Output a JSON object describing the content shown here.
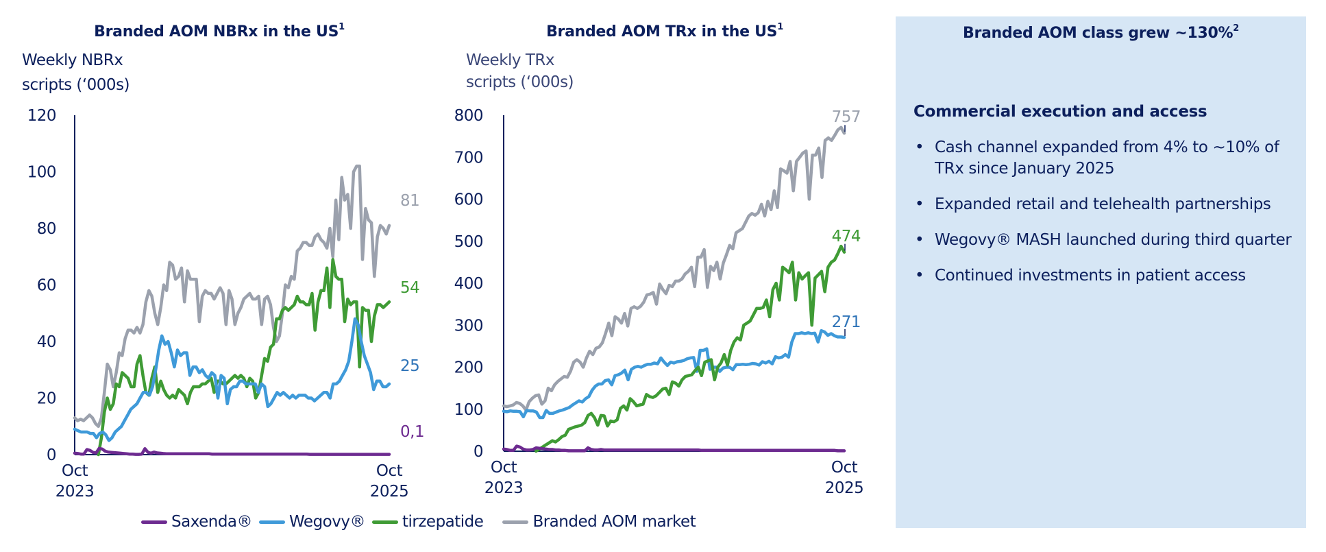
{
  "colors": {
    "saxenda": "#6d2b90",
    "wegovy": "#3f9ad9",
    "tirzepatide": "#3f9b35",
    "market": "#9ba1ad",
    "axis": "#0c1f5c",
    "panel_bg": "#d6e6f5",
    "text": "#0c1f5c"
  },
  "legend": [
    {
      "key": "saxenda",
      "label": "Saxenda®"
    },
    {
      "key": "wegovy",
      "label": "Wegovy®"
    },
    {
      "key": "tirzepatide",
      "label": "tirzepatide"
    },
    {
      "key": "market",
      "label": "Branded AOM market"
    }
  ],
  "chart_data": [
    {
      "type": "line",
      "title": "Branded AOM NBRx in the US",
      "title_footnote": "1",
      "ylabel": [
        "Weekly NBRx",
        "scripts (‘000s)"
      ],
      "xlabel": "",
      "x_tick_labels": [
        [
          "Oct",
          "2023"
        ],
        [
          "Oct",
          "2025"
        ]
      ],
      "x_range": [
        "Oct 2023",
        "Oct 2025"
      ],
      "yticks": [
        0,
        20,
        40,
        60,
        80,
        100,
        120
      ],
      "ylim": [
        0,
        120
      ],
      "grid": false,
      "legend_position": "bottom",
      "end_labels": {
        "market": "81",
        "tirzepatide": "54",
        "wegovy": "25",
        "saxenda": "0,1"
      },
      "series": [
        {
          "key": "market",
          "name": "Branded AOM market",
          "values": [
            13,
            12,
            12.5,
            12,
            13,
            14,
            13,
            11,
            10,
            13,
            22,
            32,
            30,
            24,
            29,
            36,
            35,
            41,
            44,
            44,
            43,
            45,
            43,
            46,
            54,
            58,
            56,
            50,
            46,
            52,
            60,
            58,
            68,
            67,
            62,
            63,
            66,
            54,
            65,
            62,
            62,
            62,
            47,
            56,
            58,
            57,
            57,
            55,
            57,
            59,
            57,
            46,
            58,
            55,
            46,
            50,
            52,
            55,
            56,
            57,
            55,
            55,
            56,
            46,
            55,
            56,
            53,
            45,
            40,
            42,
            50,
            60,
            59,
            63,
            62,
            72,
            73,
            75,
            75,
            74,
            74,
            77,
            78,
            76,
            75,
            73,
            80,
            70,
            90,
            76,
            98,
            90,
            92,
            80,
            100,
            102,
            102,
            69,
            87,
            83,
            82,
            63,
            77,
            81,
            80,
            78,
            81
          ]
        },
        {
          "key": "tirzepatide",
          "name": "tirzepatide",
          "values": [
            null,
            null,
            null,
            null,
            null,
            null,
            null,
            null,
            0,
            6,
            15,
            20,
            16,
            18,
            25,
            24,
            29,
            28,
            27,
            24,
            24,
            32,
            35,
            28,
            22,
            21,
            27,
            31,
            22,
            26,
            23,
            21,
            20,
            21,
            20,
            23,
            22,
            21,
            18,
            22,
            24,
            24,
            24,
            25,
            25,
            26,
            27,
            22,
            26,
            26,
            25,
            25,
            26,
            27,
            28,
            27,
            28,
            27,
            24,
            27,
            26,
            20,
            22,
            28,
            34,
            33,
            38,
            39,
            48,
            48,
            51,
            52,
            51,
            52,
            53,
            56,
            54,
            54,
            53,
            53,
            57,
            44,
            54,
            58,
            58,
            66,
            52,
            69,
            63,
            62,
            62,
            47,
            55,
            53,
            54,
            54,
            31,
            52,
            51,
            51,
            40,
            49,
            53,
            53,
            52,
            53,
            54
          ]
        },
        {
          "key": "wegovy",
          "name": "Wegovy®",
          "values": [
            9,
            8.5,
            8,
            8,
            8,
            7.5,
            7.5,
            6,
            7.5,
            8,
            7,
            5,
            6,
            8,
            9,
            10,
            12,
            14,
            16,
            17,
            18,
            20,
            22,
            22,
            21,
            24,
            30,
            37,
            42,
            39,
            40,
            36,
            31,
            37,
            35,
            36,
            36,
            28,
            31,
            31,
            29,
            30,
            28,
            27,
            29,
            28,
            20,
            28,
            27,
            18,
            23,
            24,
            24,
            26,
            26,
            25,
            25,
            25,
            25,
            22,
            25,
            24,
            17,
            18,
            20,
            22,
            21,
            22,
            21,
            20,
            21,
            20,
            21,
            21,
            21,
            20,
            20,
            19,
            20,
            21,
            22,
            22,
            20,
            25,
            25,
            26,
            28,
            30,
            33,
            40,
            48,
            46,
            40,
            35,
            32,
            29,
            23,
            26,
            26,
            24,
            24,
            25
          ]
        },
        {
          "key": "saxenda",
          "name": "Saxenda®",
          "values": [
            0.5,
            0.4,
            0.2,
            0.2,
            1.8,
            1.5,
            0.8,
            0.6,
            2.2,
            2.0,
            1.2,
            0.9,
            0.8,
            0.7,
            0.6,
            0.5,
            0.4,
            0.3,
            0.2,
            0.2,
            0.1,
            0.1,
            0.2,
            2.1,
            0.8,
            0.5,
            0.9,
            0.6,
            0.5,
            0.4,
            0.3,
            0.3,
            0.3,
            0.3,
            0.3,
            0.3,
            0.3,
            0.3,
            0.3,
            0.3,
            0.3,
            0.3,
            0.3,
            0.3,
            0.3,
            0.2,
            0.2,
            0.2,
            0.2,
            0.2,
            0.2,
            0.2,
            0.2,
            0.2,
            0.2,
            0.2,
            0.2,
            0.2,
            0.2,
            0.2,
            0.2,
            0.2,
            0.2,
            0.2,
            0.2,
            0.2,
            0.2,
            0.2,
            0.2,
            0.2,
            0.2,
            0.2,
            0.2,
            0.2,
            0.2,
            0.2,
            0.2,
            0.1,
            0.1,
            0.1,
            0.1,
            0.1,
            0.1,
            0.1,
            0.1,
            0.1,
            0.1,
            0.1,
            0.1,
            0.1,
            0.1,
            0.1,
            0.1,
            0.1,
            0.1,
            0.1,
            0.1,
            0.1,
            0.1,
            0.1,
            0.1,
            0.1,
            0.1,
            0.1
          ]
        }
      ]
    },
    {
      "type": "line",
      "title": "Branded AOM TRx in the US",
      "title_footnote": "1",
      "ylabel": [
        "Weekly TRx",
        "scripts (‘000s)"
      ],
      "xlabel": "",
      "x_tick_labels": [
        [
          "Oct",
          "2023"
        ],
        [
          "Oct",
          "2025"
        ]
      ],
      "x_range": [
        "Oct 2023",
        "Oct 2025"
      ],
      "yticks": [
        0,
        100,
        200,
        300,
        400,
        500,
        600,
        700,
        800
      ],
      "ylim": [
        0,
        800
      ],
      "grid": false,
      "legend_position": "bottom",
      "end_labels": {
        "market": "757",
        "tirzepatide": "474",
        "wegovy": "271"
      },
      "series": [
        {
          "key": "market",
          "name": "Branded AOM market",
          "values": [
            108,
            106,
            108,
            110,
            116,
            114,
            108,
            98,
            118,
            126,
            132,
            134,
            112,
            120,
            150,
            144,
            158,
            166,
            172,
            178,
            176,
            190,
            212,
            218,
            212,
            200,
            222,
            238,
            230,
            245,
            248,
            258,
            280,
            305,
            275,
            320,
            315,
            305,
            328,
            298,
            340,
            344,
            340,
            345,
            355,
            372,
            374,
            378,
            350,
            398,
            385,
            375,
            395,
            392,
            405,
            405,
            410,
            422,
            428,
            438,
            392,
            462,
            462,
            480,
            390,
            440,
            430,
            450,
            410,
            448,
            468,
            490,
            482,
            520,
            525,
            530,
            545,
            560,
            566,
            562,
            568,
            588,
            560,
            595,
            575,
            620,
            580,
            672,
            668,
            662,
            690,
            620,
            690,
            700,
            710,
            715,
            600,
            705,
            705,
            722,
            652,
            740,
            746,
            740,
            752,
            765,
            771,
            757
          ]
        },
        {
          "key": "wegovy",
          "name": "Wegovy®",
          "values": [
            95,
            94,
            96,
            95,
            95,
            94,
            82,
            97,
            96,
            96,
            93,
            80,
            80,
            97,
            90,
            90,
            93,
            96,
            98,
            101,
            104,
            110,
            115,
            120,
            117,
            125,
            130,
            145,
            155,
            160,
            160,
            168,
            170,
            158,
            180,
            182,
            186,
            193,
            170,
            195,
            200,
            202,
            200,
            204,
            207,
            207,
            210,
            208,
            222,
            212,
            204,
            212,
            210,
            213,
            214,
            216,
            220,
            222,
            223,
            190,
            240,
            240,
            244,
            195,
            200,
            200,
            190,
            198,
            200,
            200,
            194,
            206,
            206,
            207,
            206,
            207,
            209,
            208,
            205,
            213,
            210,
            214,
            208,
            225,
            222,
            224,
            230,
            224,
            260,
            280,
            280,
            282,
            280,
            282,
            280,
            281,
            260,
            287,
            284,
            276,
            280,
            275,
            272,
            272,
            271
          ]
        },
        {
          "key": "saxenda",
          "name": "Saxenda®",
          "values": [
            5,
            4,
            2,
            2,
            12,
            10,
            5,
            3,
            3,
            4,
            8,
            7,
            6,
            5,
            4,
            4,
            3,
            3,
            2,
            2,
            1,
            1,
            1,
            1,
            1,
            1,
            8,
            4,
            3,
            3,
            4,
            3,
            3,
            3,
            3,
            3,
            3,
            3,
            3,
            3,
            3,
            3,
            3,
            3,
            3,
            3,
            3,
            3,
            3,
            3,
            3,
            3,
            3,
            3,
            3,
            3,
            3,
            3,
            3,
            3,
            3,
            2,
            2,
            2,
            2,
            2,
            2,
            2,
            2,
            2,
            2,
            2,
            2,
            2,
            2,
            2,
            2,
            2,
            2,
            2,
            2,
            2,
            2,
            2,
            2,
            2,
            2,
            2,
            2,
            2,
            2,
            2,
            2,
            2,
            2,
            2,
            2,
            2,
            2,
            2,
            2,
            2,
            2,
            1,
            1,
            1
          ]
        },
        {
          "key": "tirzepatide",
          "name": "tirzepatide",
          "values": [
            null,
            null,
            null,
            null,
            null,
            null,
            null,
            null,
            null,
            null,
            0,
            5,
            10,
            15,
            20,
            25,
            22,
            28,
            35,
            38,
            52,
            55,
            58,
            60,
            62,
            68,
            85,
            90,
            80,
            62,
            85,
            84,
            60,
            72,
            70,
            75,
            102,
            108,
            98,
            125,
            118,
            108,
            110,
            112,
            135,
            130,
            128,
            132,
            140,
            148,
            150,
            135,
            165,
            162,
            155,
            170,
            178,
            180,
            182,
            192,
            200,
            180,
            212,
            215,
            218,
            170,
            200,
            210,
            230,
            205,
            240,
            260,
            270,
            265,
            300,
            305,
            310,
            325,
            340,
            340,
            342,
            360,
            320,
            385,
            400,
            360,
            438,
            432,
            425,
            450,
            360,
            425,
            410,
            418,
            425,
            300,
            412,
            420,
            428,
            380,
            438,
            450,
            455,
            470,
            488,
            474
          ]
        }
      ]
    }
  ],
  "panel": {
    "title": "Branded AOM class grew ~130%",
    "title_footnote": "2",
    "heading": "Commercial execution and access",
    "bullet_glyph": "•",
    "bullets": [
      "Cash channel expanded from 4% to ~10% of TRx since January 2025",
      "Expanded retail and telehealth partnerships",
      "Wegovy® MASH launched during third quarter",
      "Continued investments in patient access"
    ]
  }
}
